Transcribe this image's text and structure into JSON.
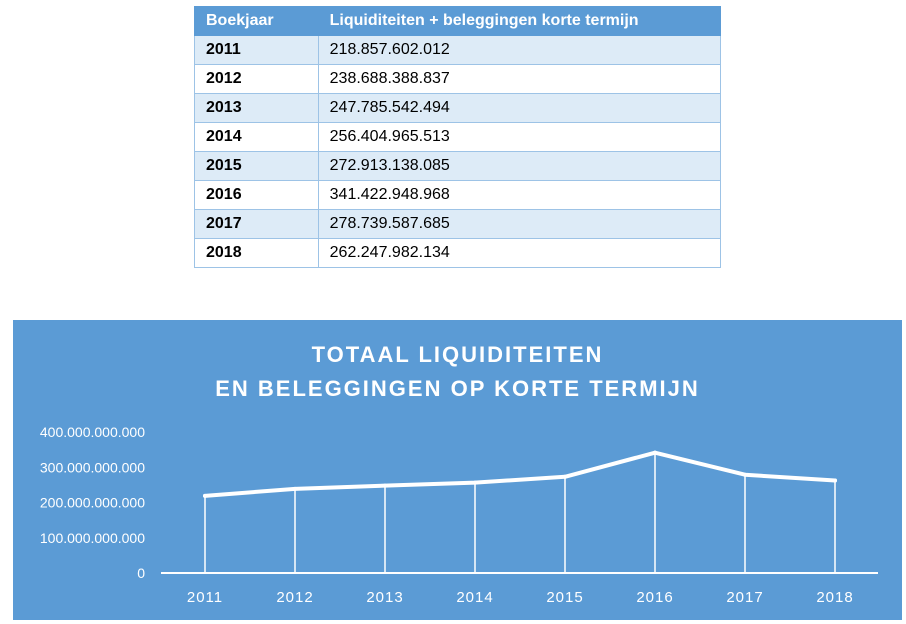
{
  "table": {
    "headers": [
      "Boekjaar",
      "Liquiditeiten + beleggingen korte termijn"
    ],
    "rows": [
      [
        "2011",
        "218.857.602.012"
      ],
      [
        "2012",
        "238.688.388.837"
      ],
      [
        "2013",
        "247.785.542.494"
      ],
      [
        "2014",
        "256.404.965.513"
      ],
      [
        "2015",
        "272.913.138.085"
      ],
      [
        "2016",
        "341.422.948.968"
      ],
      [
        "2017",
        "278.739.587.685"
      ],
      [
        "2018",
        "262.247.982.134"
      ]
    ]
  },
  "colors": {
    "header_bg": "#5b9bd5",
    "row_alt_bg": "#ddebf7",
    "border": "#9dc3e6",
    "chart_bg": "#5b9bd5",
    "chart_line": "#ffffff",
    "chart_text": "#ffffff"
  },
  "chart_data": {
    "type": "line",
    "title_lines": [
      "TOTAAL LIQUIDITEITEN",
      "EN BELEGGINGEN OP KORTE TERMIJN"
    ],
    "categories": [
      "2011",
      "2012",
      "2013",
      "2014",
      "2015",
      "2016",
      "2017",
      "2018"
    ],
    "values": [
      218857602012,
      238688388837,
      247785542494,
      256404965513,
      272913138085,
      341422948968,
      278739587685,
      262247982134
    ],
    "y_ticks": [
      0,
      100000000000,
      200000000000,
      300000000000,
      400000000000
    ],
    "y_tick_labels": [
      "0",
      "100.000.000.000",
      "200.000.000.000",
      "300.000.000.000",
      "400.000.000.000"
    ],
    "ylim": [
      0,
      400000000000
    ],
    "drop_lines": true,
    "grid": false,
    "legend": "none"
  }
}
